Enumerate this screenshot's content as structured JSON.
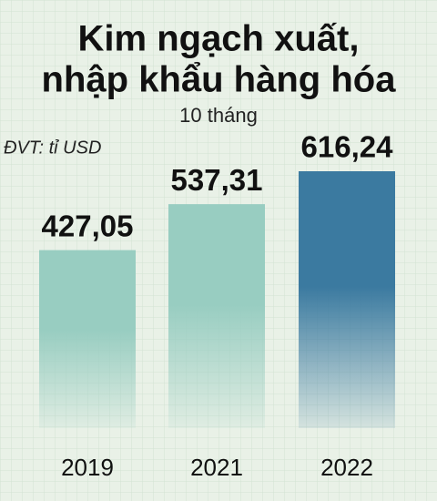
{
  "chart_data": {
    "type": "bar",
    "title": [
      "Kim ngạch xuất,",
      "nhập khẩu hàng hóa"
    ],
    "subtitle": "10 tháng",
    "unit": "ĐVT: tỉ USD",
    "categories": [
      "2019",
      "2021",
      "2022"
    ],
    "values": [
      427.05,
      537.31,
      616.24
    ],
    "value_labels": [
      "427,05",
      "537,31",
      "616,24"
    ],
    "colors": [
      "#98cdc1",
      "#98cdc1",
      "#3b7aa0"
    ]
  }
}
